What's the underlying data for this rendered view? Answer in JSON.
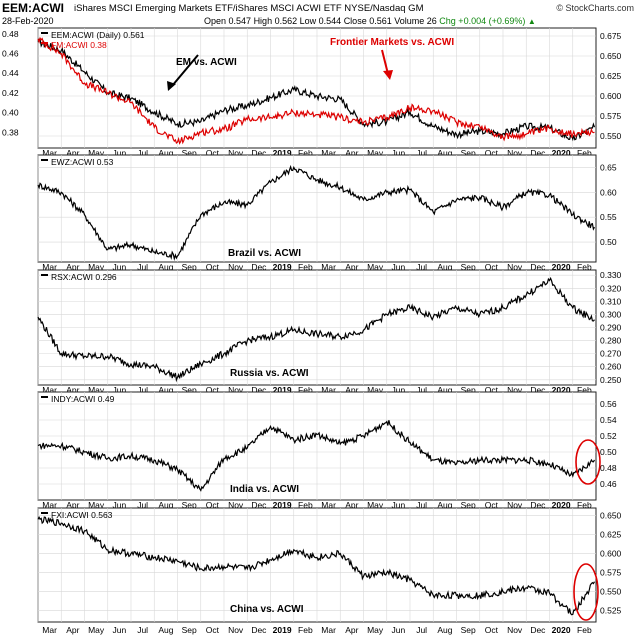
{
  "header": {
    "symbol": "EEM:ACWI",
    "name": "iShares MSCI Emerging Markets ETF/iShares MSCI ACWI ETF  NYSE/Nasdaq GM",
    "date": "28-Feb-2020",
    "open": "Open 0.547",
    "high": "High 0.562",
    "low": "Low 0.544",
    "close": "Close 0.561",
    "volume": "Volume 26",
    "chg": "Chg +0.004 (+0.69%)",
    "chg_arrow": "▲",
    "credit": "© StockCharts.com"
  },
  "chart_data": [
    {
      "type": "line",
      "panel": 0,
      "series": [
        {
          "name": "EEM:ACWI (Daily) 0.561",
          "color": "#000000",
          "axis": "right",
          "x": [
            "2018-03",
            "2018-04",
            "2018-05",
            "2018-06",
            "2018-07",
            "2018-08",
            "2018-09",
            "2018-10",
            "2018-11",
            "2018-12",
            "2019-01",
            "2019-02",
            "2019-03",
            "2019-04",
            "2019-05",
            "2019-06",
            "2019-07",
            "2019-08",
            "2019-09",
            "2019-10",
            "2019-11",
            "2019-12",
            "2020-01",
            "2020-02",
            "2020-02-28"
          ],
          "values": [
            0.668,
            0.657,
            0.63,
            0.604,
            0.597,
            0.58,
            0.565,
            0.568,
            0.582,
            0.588,
            0.598,
            0.608,
            0.6,
            0.596,
            0.565,
            0.568,
            0.58,
            0.562,
            0.552,
            0.556,
            0.553,
            0.562,
            0.56,
            0.546,
            0.561
          ]
        },
        {
          "name": "FM:ACWI 0.38",
          "color": "#dd0000",
          "axis": "left",
          "x": [
            "2018-03",
            "2018-04",
            "2018-05",
            "2018-06",
            "2018-07",
            "2018-08",
            "2018-09",
            "2018-10",
            "2018-11",
            "2018-12",
            "2019-01",
            "2019-02",
            "2019-03",
            "2019-04",
            "2019-05",
            "2019-06",
            "2019-07",
            "2019-08",
            "2019-09",
            "2019-10",
            "2019-11",
            "2019-12",
            "2020-01",
            "2020-02",
            "2020-02-28"
          ],
          "values": [
            0.475,
            0.46,
            0.43,
            0.42,
            0.41,
            0.385,
            0.37,
            0.38,
            0.383,
            0.393,
            0.395,
            0.4,
            0.398,
            0.395,
            0.39,
            0.395,
            0.405,
            0.402,
            0.39,
            0.386,
            0.375,
            0.378,
            0.384,
            0.378,
            0.38
          ]
        }
      ],
      "yticks_left": [
        "0.48",
        "0.46",
        "0.44",
        "0.42",
        "0.40",
        "0.38"
      ],
      "ylim_left": [
        0.364,
        0.486
      ],
      "yticks_right": [
        "0.675",
        "0.650",
        "0.625",
        "0.600",
        "0.575",
        "0.550"
      ],
      "ylim_right": [
        0.535,
        0.685
      ],
      "annotations": [
        {
          "text": "EM vs. ACWI",
          "color": "#000000"
        },
        {
          "text": "Frontier Markets vs. ACWI",
          "color": "#dd0000"
        }
      ],
      "grid": true
    },
    {
      "type": "line",
      "panel": 1,
      "series": [
        {
          "name": "EWZ:ACWI 0.53",
          "color": "#000000",
          "x": [
            "2018-03",
            "2018-04",
            "2018-05",
            "2018-06",
            "2018-07",
            "2018-08",
            "2018-09",
            "2018-10",
            "2018-11",
            "2018-12",
            "2019-01",
            "2019-02",
            "2019-03",
            "2019-04",
            "2019-05",
            "2019-06",
            "2019-07",
            "2019-08",
            "2019-09",
            "2019-10",
            "2019-11",
            "2019-12",
            "2020-01",
            "2020-02",
            "2020-02-28"
          ],
          "values": [
            0.615,
            0.6,
            0.555,
            0.485,
            0.495,
            0.48,
            0.472,
            0.555,
            0.58,
            0.575,
            0.62,
            0.65,
            0.625,
            0.61,
            0.585,
            0.6,
            0.605,
            0.56,
            0.585,
            0.59,
            0.57,
            0.6,
            0.595,
            0.555,
            0.53
          ]
        }
      ],
      "yticks": [
        "0.65",
        "0.60",
        "0.55",
        "0.50"
      ],
      "ylim": [
        0.46,
        0.675
      ],
      "annotations": [
        {
          "text": "Brazil vs. ACWI",
          "color": "#000000"
        }
      ],
      "grid": true
    },
    {
      "type": "line",
      "panel": 2,
      "series": [
        {
          "name": "RSX:ACWI 0.296",
          "color": "#000000",
          "x": [
            "2018-03",
            "2018-04",
            "2018-05",
            "2018-06",
            "2018-07",
            "2018-08",
            "2018-09",
            "2018-10",
            "2018-11",
            "2018-12",
            "2019-01",
            "2019-02",
            "2019-03",
            "2019-04",
            "2019-05",
            "2019-06",
            "2019-07",
            "2019-08",
            "2019-09",
            "2019-10",
            "2019-11",
            "2019-12",
            "2020-01",
            "2020-02",
            "2020-02-28"
          ],
          "values": [
            0.298,
            0.27,
            0.268,
            0.268,
            0.262,
            0.26,
            0.252,
            0.262,
            0.27,
            0.28,
            0.283,
            0.288,
            0.285,
            0.283,
            0.288,
            0.3,
            0.305,
            0.298,
            0.305,
            0.3,
            0.305,
            0.315,
            0.326,
            0.305,
            0.296
          ]
        }
      ],
      "yticks": [
        "0.330",
        "0.320",
        "0.310",
        "0.300",
        "0.290",
        "0.280",
        "0.270",
        "0.260",
        "0.250"
      ],
      "ylim": [
        0.246,
        0.334
      ],
      "annotations": [
        {
          "text": "Russia vs. ACWI",
          "color": "#000000"
        }
      ],
      "grid": true
    },
    {
      "type": "line",
      "panel": 3,
      "series": [
        {
          "name": "INDY:ACWI 0.49",
          "color": "#000000",
          "x": [
            "2018-03",
            "2018-04",
            "2018-05",
            "2018-06",
            "2018-07",
            "2018-08",
            "2018-09",
            "2018-10",
            "2018-11",
            "2018-12",
            "2019-01",
            "2019-02",
            "2019-03",
            "2019-04",
            "2019-05",
            "2019-06",
            "2019-07",
            "2019-08",
            "2019-09",
            "2019-10",
            "2019-11",
            "2019-12",
            "2020-01",
            "2020-02",
            "2020-02-28"
          ],
          "values": [
            0.508,
            0.508,
            0.5,
            0.492,
            0.495,
            0.49,
            0.478,
            0.452,
            0.492,
            0.505,
            0.532,
            0.515,
            0.522,
            0.51,
            0.52,
            0.538,
            0.512,
            0.49,
            0.485,
            0.49,
            0.49,
            0.49,
            0.485,
            0.47,
            0.49
          ]
        }
      ],
      "yticks": [
        "0.56",
        "0.54",
        "0.52",
        "0.50",
        "0.48",
        "0.46"
      ],
      "ylim": [
        0.44,
        0.575
      ],
      "annotations": [
        {
          "text": "India vs. ACWI",
          "color": "#000000"
        }
      ],
      "grid": true
    },
    {
      "type": "line",
      "panel": 4,
      "series": [
        {
          "name": "FXI:ACWI 0.563",
          "color": "#000000",
          "x": [
            "2018-03",
            "2018-04",
            "2018-05",
            "2018-06",
            "2018-07",
            "2018-08",
            "2018-09",
            "2018-10",
            "2018-11",
            "2018-12",
            "2019-01",
            "2019-02",
            "2019-03",
            "2019-04",
            "2019-05",
            "2019-06",
            "2019-07",
            "2019-08",
            "2019-09",
            "2019-10",
            "2019-11",
            "2019-12",
            "2020-01",
            "2020-02",
            "2020-02-28"
          ],
          "values": [
            0.645,
            0.64,
            0.63,
            0.605,
            0.6,
            0.595,
            0.59,
            0.58,
            0.583,
            0.58,
            0.592,
            0.605,
            0.595,
            0.6,
            0.57,
            0.575,
            0.565,
            0.545,
            0.545,
            0.545,
            0.55,
            0.555,
            0.548,
            0.52,
            0.563
          ]
        }
      ],
      "yticks": [
        "0.650",
        "0.625",
        "0.600",
        "0.575",
        "0.550",
        "0.525"
      ],
      "ylim": [
        0.51,
        0.66
      ],
      "annotations": [
        {
          "text": "China vs. ACWI",
          "color": "#000000"
        }
      ],
      "grid": true
    }
  ],
  "x_axis": {
    "ticks": [
      "Mar",
      "Apr",
      "May",
      "Jun",
      "Jul",
      "Aug",
      "Sep",
      "Oct",
      "Nov",
      "Dec",
      "2019",
      "Feb",
      "Mar",
      "Apr",
      "May",
      "Jun",
      "Jul",
      "Aug",
      "Sep",
      "Oct",
      "Nov",
      "Dec",
      "2020",
      "Feb"
    ],
    "bold_ticks": [
      "2019",
      "2020"
    ]
  },
  "highlight_color": "#dd0000"
}
